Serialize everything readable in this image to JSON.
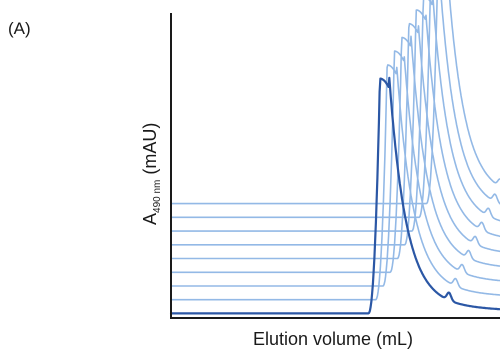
{
  "panel_label": "(A)",
  "colors": {
    "reference_trace": "#2b57a5",
    "offset_traces": "#93b9e6",
    "axis": "#1a1a1a"
  },
  "chart_data": {
    "type": "line",
    "title": "",
    "xlabel": "Elution volume (mL)",
    "ylabel": {
      "main": "A",
      "subscript": "490 nm",
      "unit": "(mAU)"
    },
    "ticks": "none",
    "grid": false,
    "legend": "none",
    "stacked_offset": true,
    "series": [
      {
        "peak_x": 0.645,
        "baseline_y": 0.015,
        "peak_height": 0.77,
        "tail_bump_x": 0.845
      },
      {
        "peak_x": 0.667,
        "baseline_y": 0.06,
        "peak_height": 0.77,
        "tail_bump_x": 0.865
      },
      {
        "peak_x": 0.689,
        "baseline_y": 0.105,
        "peak_height": 0.77,
        "tail_bump_x": 0.885
      },
      {
        "peak_x": 0.711,
        "baseline_y": 0.15,
        "peak_height": 0.77,
        "tail_bump_x": 0.905
      },
      {
        "peak_x": 0.733,
        "baseline_y": 0.195,
        "peak_height": 0.77,
        "tail_bump_x": 0.925
      },
      {
        "peak_x": 0.755,
        "baseline_y": 0.24,
        "peak_height": 0.77,
        "tail_bump_x": 0.945
      },
      {
        "peak_x": 0.777,
        "baseline_y": 0.285,
        "peak_height": 0.77,
        "tail_bump_x": 0.965
      },
      {
        "peak_x": 0.799,
        "baseline_y": 0.33,
        "peak_height": 0.77,
        "tail_bump_x": 0.985
      },
      {
        "peak_x": 0.821,
        "baseline_y": 0.375,
        "peak_height": 0.77,
        "tail_bump_x": 1.0
      }
    ]
  }
}
